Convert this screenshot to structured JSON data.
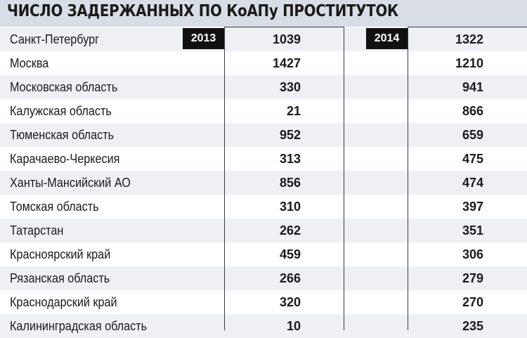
{
  "colors": {
    "title_band": "#d9dde6",
    "row_stripe": "#eef0f4",
    "year_tag": "#111111"
  },
  "chart_data": {
    "type": "table",
    "title": "ЧИСЛО ЗАДЕРЖАННЫХ ПО КоАПу ПРОСТИТУТОК",
    "columns": [
      "2013",
      "2014"
    ],
    "rows": [
      {
        "region": "Санкт-Петербург",
        "y2013": "1039",
        "y2014": "1322"
      },
      {
        "region": "Москва",
        "y2013": "1427",
        "y2014": "1210"
      },
      {
        "region": "Московская область",
        "y2013": "330",
        "y2014": "941"
      },
      {
        "region": "Калужская область",
        "y2013": "21",
        "y2014": "866"
      },
      {
        "region": "Тюменская область",
        "y2013": "952",
        "y2014": "659"
      },
      {
        "region": "Карачаево-Черкесия",
        "y2013": "313",
        "y2014": "475"
      },
      {
        "region": "Ханты-Мансийский АО",
        "y2013": "856",
        "y2014": "474"
      },
      {
        "region": "Томская область",
        "y2013": "310",
        "y2014": "397"
      },
      {
        "region": "Татарстан",
        "y2013": "262",
        "y2014": "351"
      },
      {
        "region": "Красноярский край",
        "y2013": "459",
        "y2014": "306"
      },
      {
        "region": "Рязанская область",
        "y2013": "266",
        "y2014": "279"
      },
      {
        "region": "Краснодарский край",
        "y2013": "320",
        "y2014": "270"
      },
      {
        "region": "Калининградская область",
        "y2013": "10",
        "y2014": "235"
      }
    ]
  }
}
